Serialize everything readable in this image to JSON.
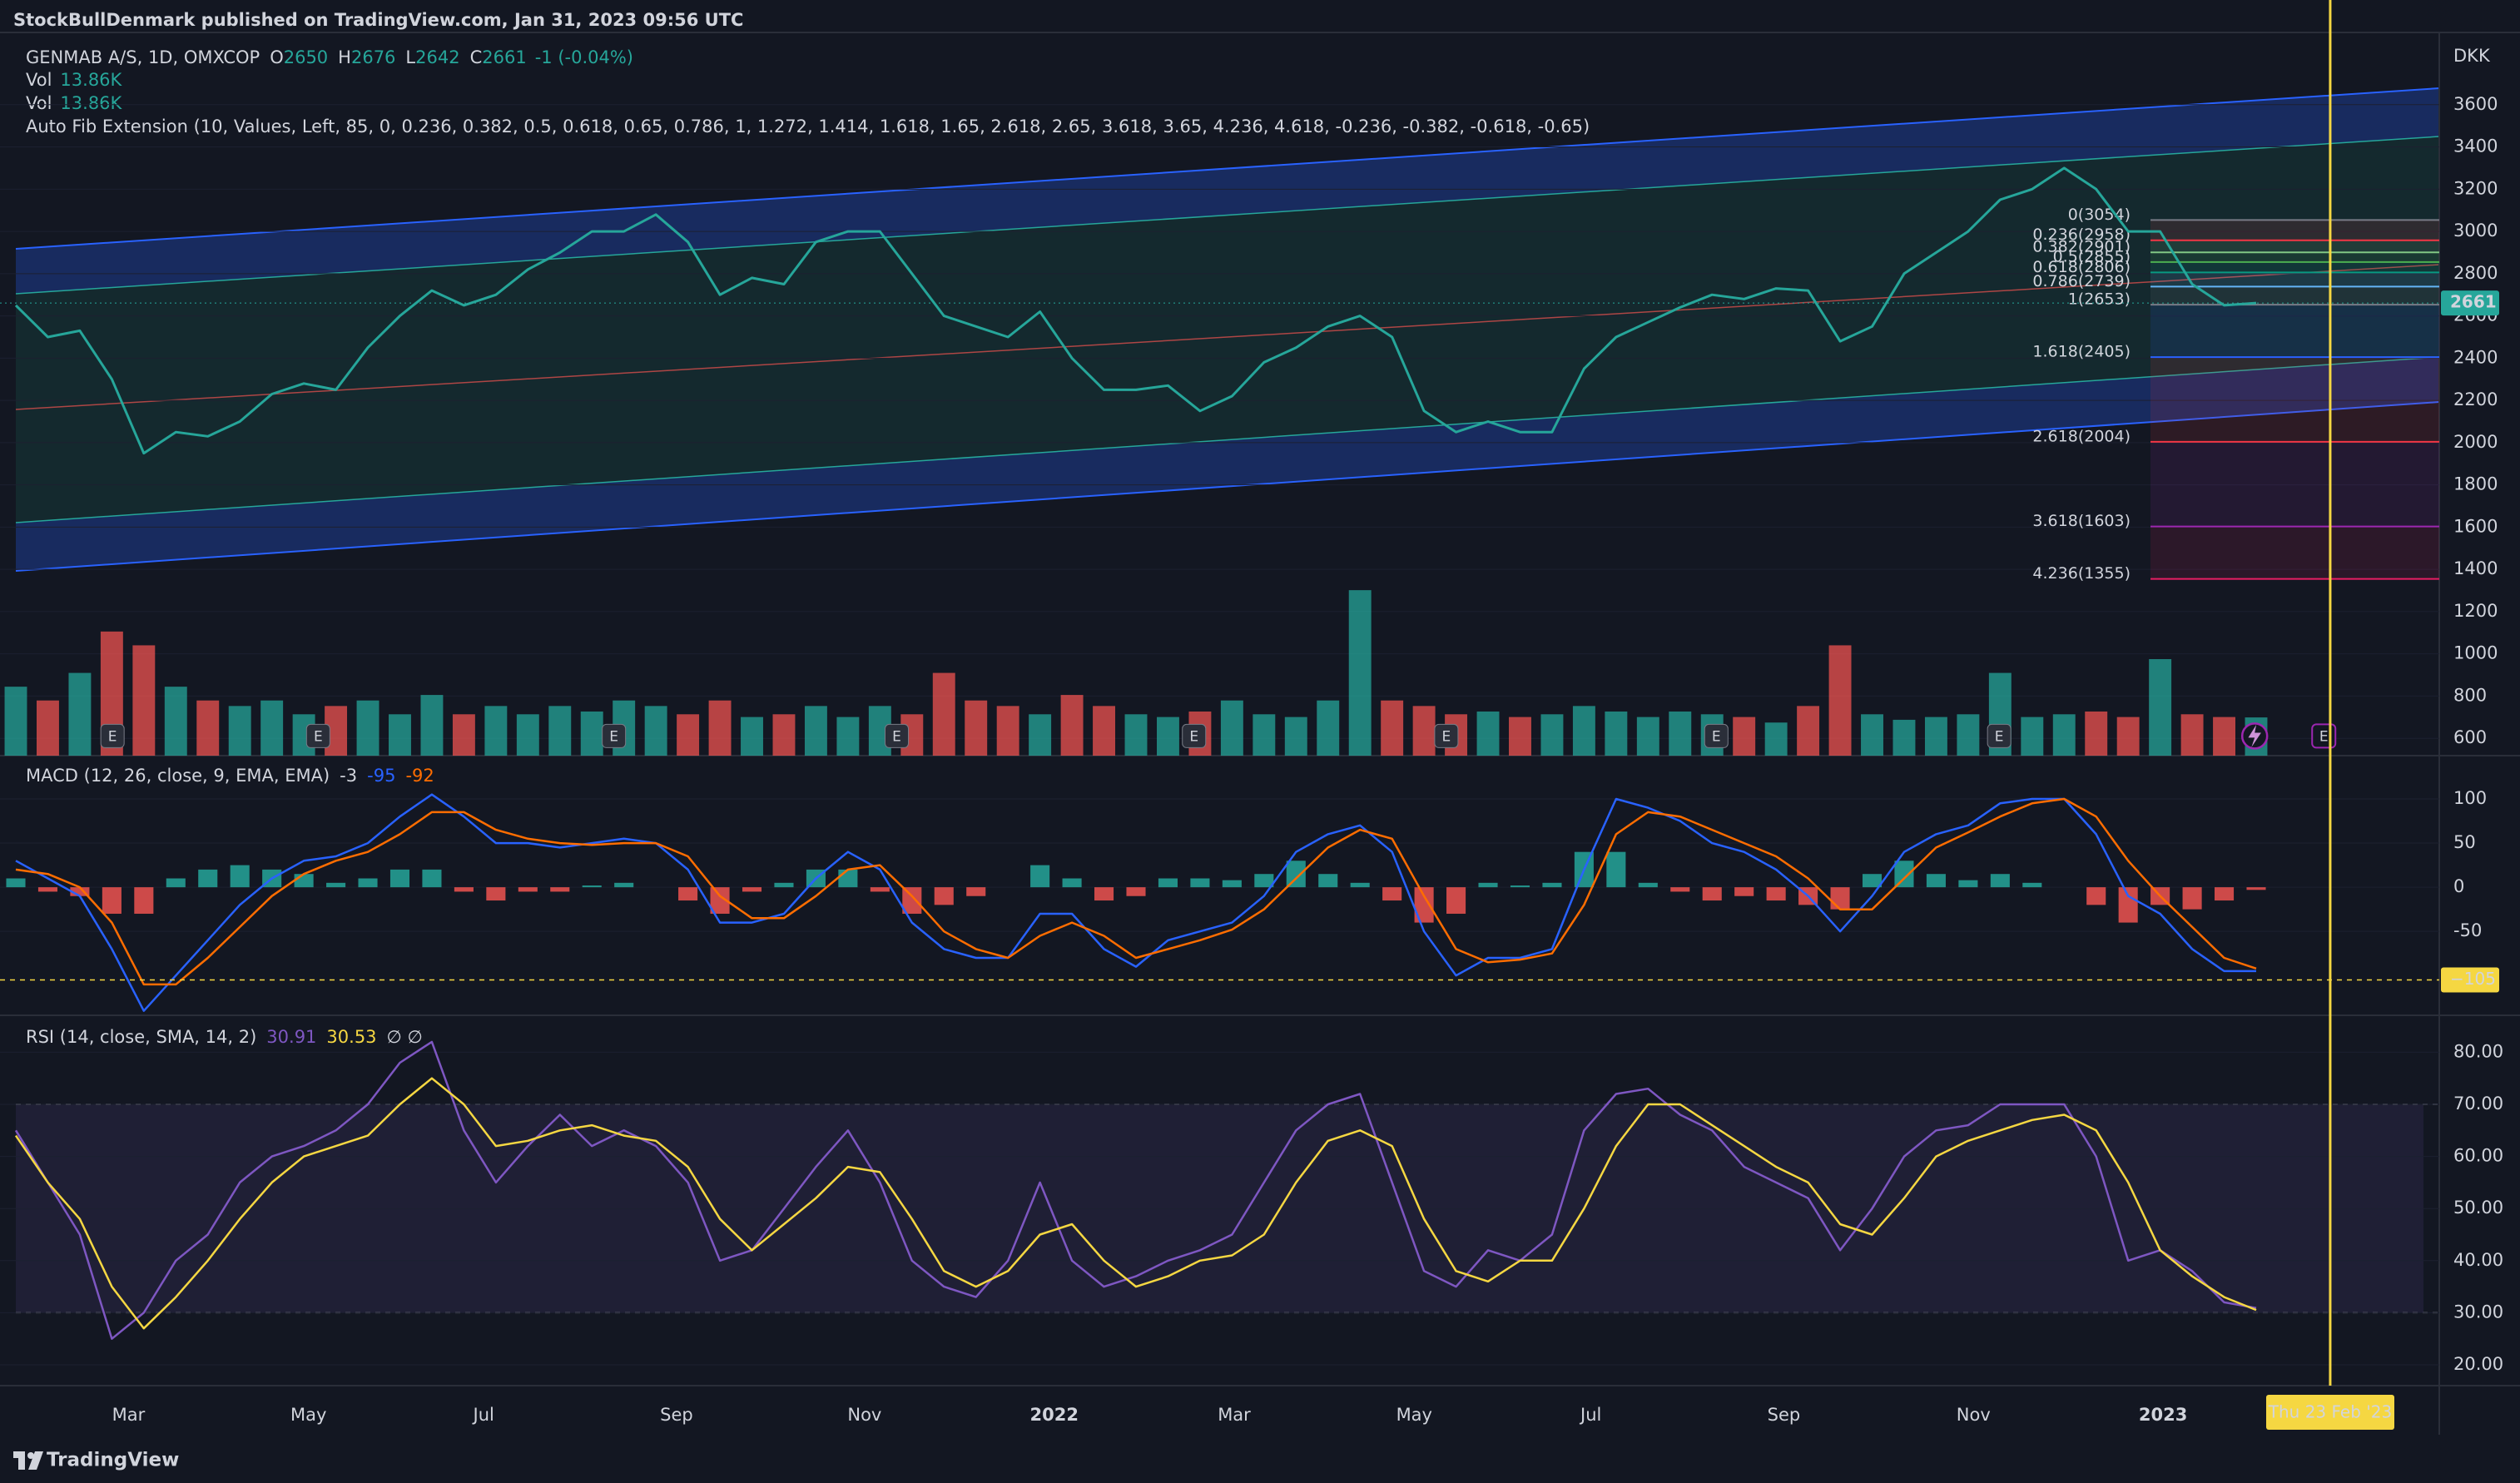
{
  "header": {
    "publisher": "StockBullDenmark published on TradingView.com, Jan 31, 2023 09:56 UTC"
  },
  "legend": {
    "symbol": "GENMAB A/S, 1D, OMXCOP",
    "ohlc": [
      {
        "key": "O",
        "value": 2650
      },
      {
        "key": "H",
        "value": 2676
      },
      {
        "key": "L",
        "value": 2642
      },
      {
        "key": "C",
        "value": 2661
      }
    ],
    "change": "-1 (-0.04%)",
    "volume": [
      {
        "key": "Vol",
        "value": "13.86K"
      },
      {
        "key": "Vol",
        "value": "13.86K"
      }
    ],
    "fib_indicator": "Auto Fib Extension (10, Values, Left, 85, 0, 0.236, 0.382, 0.5, 0.618, 0.65, 0.786, 1, 1.272, 1.414, 1.618, 1.65, 2.618, 2.65, 3.618, 3.65, 4.236, 4.618, -0.236, -0.382, -0.618, -0.65)"
  },
  "time_axis": {
    "labels": [
      "Mar",
      "May",
      "Jul",
      "Sep",
      "Nov",
      "2022",
      "Mar",
      "May",
      "Jul",
      "Sep",
      "Nov",
      "2023"
    ],
    "cursor_label": "Thu 23 Feb '23"
  },
  "earnings_marker": "E",
  "footer": {
    "brand": "TradingView"
  },
  "chart_data": [
    {
      "type": "line",
      "unit": "DKK",
      "color": "#26a69a",
      "values": [
        2650,
        2500,
        2530,
        2300,
        1950,
        2050,
        2030,
        2100,
        2230,
        2280,
        2250,
        2450,
        2600,
        2720,
        2650,
        2700,
        2820,
        2900,
        3000,
        3000,
        3080,
        2950,
        2700,
        2780,
        2750,
        2950,
        3000,
        3000,
        2800,
        2600,
        2550,
        2500,
        2620,
        2400,
        2250,
        2250,
        2270,
        2150,
        2220,
        2380,
        2450,
        2550,
        2600,
        2500,
        2150,
        2050,
        2100,
        2050,
        2050,
        2350,
        2500,
        2570,
        2640,
        2700,
        2680,
        2730,
        2720,
        2480,
        2550,
        2800,
        2900,
        3000,
        3150,
        3200,
        3300,
        3200,
        3000,
        3000,
        2750,
        2650,
        2661
      ],
      "ylim": [
        518,
        3942
      ],
      "yticks": [
        600,
        800,
        1000,
        1200,
        1400,
        1600,
        1800,
        2000,
        2200,
        2400,
        2600,
        2800,
        3000,
        3200,
        3400,
        3600
      ],
      "fib": [
        {
          "label": "0(3054)",
          "value": 3054,
          "color": "#787b86"
        },
        {
          "label": "0.236(2958)",
          "value": 2958,
          "color": "#f23645"
        },
        {
          "label": "0.382(2901)",
          "value": 2901,
          "color": "#81c784"
        },
        {
          "label": "0.5(2855)",
          "value": 2855,
          "color": "#4caf50"
        },
        {
          "label": "0.618(2806)",
          "value": 2806,
          "color": "#089981"
        },
        {
          "label": "0.786(2739)",
          "value": 2739,
          "color": "#64b5f6"
        },
        {
          "label": "1(2653)",
          "value": 2653,
          "color": "#787b86"
        },
        {
          "label": "1.618(2405)",
          "value": 2405,
          "color": "#2962ff"
        },
        {
          "label": "2.618(2004)",
          "value": 2004,
          "color": "#f23645"
        },
        {
          "label": "3.618(1603)",
          "value": 1603,
          "color": "#9c27b0"
        },
        {
          "label": "4.236(1355)",
          "value": 1355,
          "color": "#e91e63"
        }
      ]
    },
    {
      "type": "bar",
      "up_color": "#26a69a",
      "down_color": "#ef5350",
      "values": [
        25,
        20,
        30,
        45,
        40,
        25,
        20,
        18,
        20,
        15,
        18,
        20,
        15,
        22,
        15,
        18,
        15,
        18,
        16,
        20,
        18,
        15,
        20,
        14,
        15,
        18,
        14,
        18,
        15,
        30,
        20,
        18,
        15,
        22,
        18,
        15,
        14,
        16,
        20,
        15,
        14,
        20,
        60,
        20,
        18,
        15,
        16,
        14,
        15,
        18,
        16,
        14,
        16,
        15,
        14,
        12,
        18,
        40,
        15,
        13,
        14,
        15,
        30,
        14,
        15,
        16,
        14,
        35,
        15,
        14,
        13.86
      ],
      "ylim": [
        0,
        70
      ]
    },
    {
      "type": "macd",
      "title": "MACD (12, 26, close, 9, EMA, EMA)",
      "legend_values": [
        -3,
        -95,
        -92
      ],
      "series": [
        {
          "color": "#2962ff",
          "values": [
            30,
            10,
            -10,
            -70,
            -140,
            -100,
            -60,
            -20,
            10,
            30,
            35,
            50,
            80,
            105,
            80,
            50,
            50,
            45,
            50,
            55,
            50,
            20,
            -40,
            -40,
            -30,
            10,
            40,
            20,
            -40,
            -70,
            -80,
            -80,
            -30,
            -30,
            -70,
            -90,
            -60,
            -50,
            -40,
            -10,
            40,
            60,
            70,
            40,
            -50,
            -100,
            -80,
            -80,
            -70,
            20,
            100,
            90,
            75,
            50,
            40,
            20,
            -10,
            -50,
            -10,
            40,
            60,
            70,
            95,
            100,
            100,
            60,
            -10,
            -30,
            -70,
            -95,
            -95
          ]
        },
        {
          "color": "#ff6d00",
          "values": [
            20,
            15,
            0,
            -40,
            -110,
            -110,
            -80,
            -45,
            -10,
            15,
            30,
            40,
            60,
            85,
            85,
            65,
            55,
            50,
            48,
            50,
            50,
            35,
            -10,
            -35,
            -35,
            -10,
            20,
            25,
            -10,
            -50,
            -70,
            -80,
            -55,
            -40,
            -55,
            -80,
            -70,
            -60,
            -48,
            -25,
            10,
            45,
            65,
            55,
            -10,
            -70,
            -85,
            -82,
            -75,
            -20,
            60,
            85,
            80,
            65,
            50,
            35,
            10,
            -25,
            -25,
            10,
            45,
            62,
            80,
            95,
            100,
            80,
            30,
            -10,
            -45,
            -80,
            -92
          ]
        }
      ],
      "histogram": {
        "up_color": "#26a69a",
        "down_color": "#ef5350",
        "values": [
          10,
          -5,
          -10,
          -30,
          -30,
          10,
          20,
          25,
          20,
          15,
          5,
          10,
          20,
          20,
          -5,
          -15,
          -5,
          -5,
          2,
          5,
          0,
          -15,
          -30,
          -5,
          5,
          20,
          20,
          -5,
          -30,
          -20,
          -10,
          0,
          25,
          10,
          -15,
          -10,
          10,
          10,
          8,
          15,
          30,
          15,
          5,
          -15,
          -40,
          -30,
          5,
          2,
          5,
          40,
          40,
          5,
          -5,
          -15,
          -10,
          -15,
          -20,
          -25,
          15,
          30,
          15,
          8,
          15,
          5,
          0,
          -20,
          -40,
          -20,
          -25,
          -15,
          -3
        ]
      },
      "alert_line": {
        "value": -105,
        "label": "−105"
      },
      "ylim": [
        -145,
        149
      ],
      "yticks": [
        -50,
        0,
        50,
        100
      ]
    },
    {
      "type": "rsi",
      "title": "RSI (14, close, SMA, 14, 2)",
      "legend_values": [
        30.91,
        30.53
      ],
      "legend_extra": "∅ ∅",
      "series": [
        {
          "color": "#7e57c2",
          "values": [
            65,
            55,
            45,
            25,
            30,
            40,
            45,
            55,
            60,
            62,
            65,
            70,
            78,
            82,
            65,
            55,
            62,
            68,
            62,
            65,
            62,
            55,
            40,
            42,
            50,
            58,
            65,
            55,
            40,
            35,
            33,
            40,
            55,
            40,
            35,
            37,
            40,
            42,
            45,
            55,
            65,
            70,
            72,
            55,
            38,
            35,
            42,
            40,
            45,
            65,
            72,
            73,
            68,
            65,
            58,
            55,
            52,
            42,
            50,
            60,
            65,
            66,
            70,
            70,
            70,
            60,
            40,
            42,
            38,
            32,
            30.91
          ]
        },
        {
          "color": "#f5d742",
          "values": [
            64,
            55,
            48,
            35,
            27,
            33,
            40,
            48,
            55,
            60,
            62,
            64,
            70,
            75,
            70,
            62,
            63,
            65,
            66,
            64,
            63,
            58,
            48,
            42,
            47,
            52,
            58,
            57,
            48,
            38,
            35,
            38,
            45,
            47,
            40,
            35,
            37,
            40,
            41,
            45,
            55,
            63,
            65,
            62,
            48,
            38,
            36,
            40,
            40,
            50,
            62,
            70,
            70,
            66,
            62,
            58,
            55,
            47,
            45,
            52,
            60,
            63,
            65,
            67,
            68,
            65,
            55,
            42,
            37,
            33,
            30.53
          ]
        }
      ],
      "band": [
        30,
        70
      ],
      "ylim": [
        16,
        87.1
      ],
      "yticks": [
        {
          "value": 20,
          "label": "20.00"
        },
        {
          "value": 30,
          "label": "30.00"
        },
        {
          "value": 40,
          "label": "40.00"
        },
        {
          "value": 50,
          "label": "50.00"
        },
        {
          "value": 60,
          "label": "60.00"
        },
        {
          "value": 70,
          "label": "70.00"
        },
        {
          "value": 80,
          "label": "80.00"
        }
      ]
    }
  ]
}
